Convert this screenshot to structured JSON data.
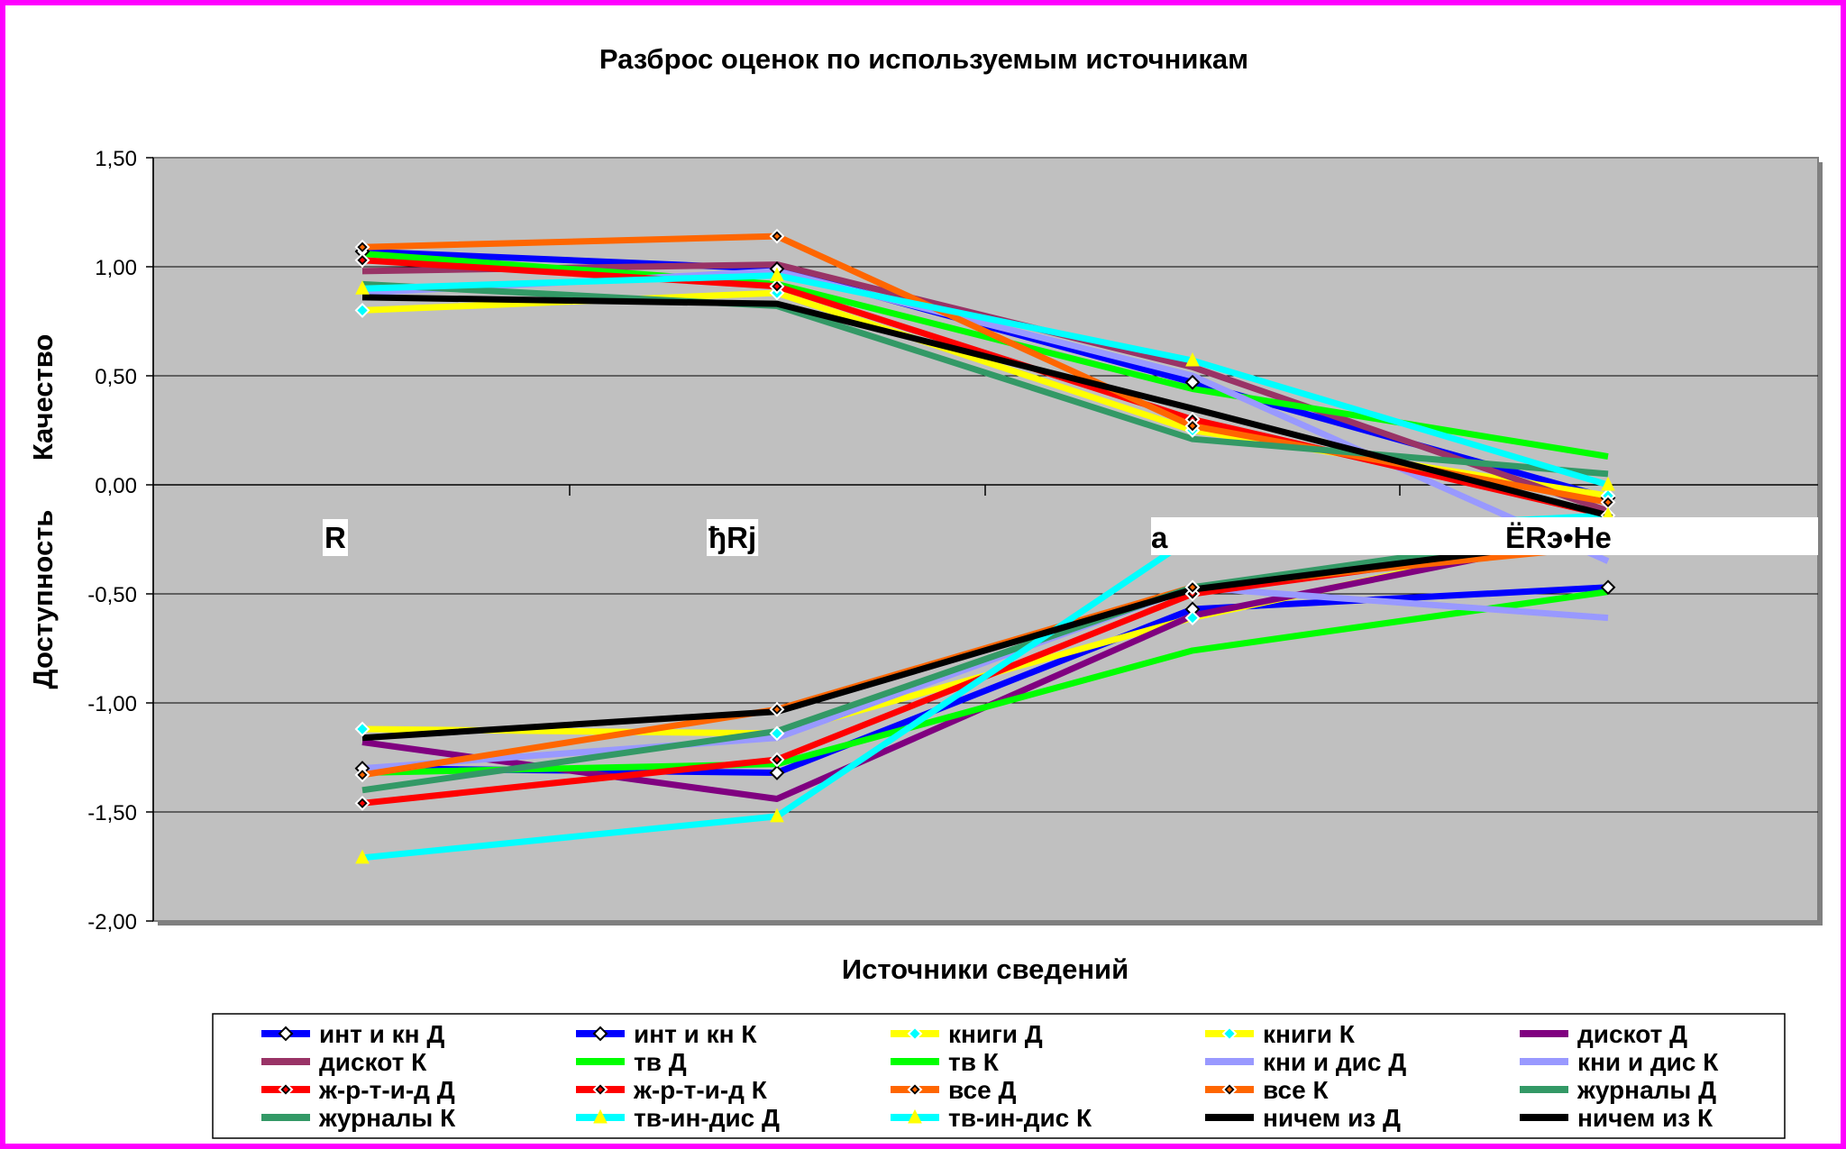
{
  "chart_data": {
    "type": "line",
    "title": "Разброс оценок по используемым источникам",
    "xlabel": "Источники сведений",
    "ylabel_upper": "Качество",
    "ylabel_lower": "Доступность",
    "categories": [
      "R",
      "ђRj",
      "a",
      "ЁRэ•Не"
    ],
    "ylim": [
      -2.0,
      1.5
    ],
    "yticks": [
      "1,50",
      "1,00",
      "0,50",
      "0,00",
      "-0,50",
      "-1,00",
      "-1,50",
      "-2,00"
    ],
    "ytick_values": [
      1.5,
      1.0,
      0.5,
      0.0,
      -0.5,
      -1.0,
      -1.5,
      -2.0
    ],
    "grid": true,
    "plot_background": "#c0c0c0",
    "legend_position": "bottom",
    "series": [
      {
        "name": "инт и кн Д",
        "color": "#0000ff",
        "marker": "diamond-white",
        "values": [
          1.07,
          0.99,
          0.47,
          -0.06
        ]
      },
      {
        "name": "инт и кн К",
        "color": "#0000ff",
        "marker": "diamond-white",
        "values": [
          -1.3,
          -1.32,
          -0.57,
          -0.47
        ]
      },
      {
        "name": "книги Д",
        "color": "#ffff00",
        "marker": "diamond-cyan",
        "values": [
          0.8,
          0.88,
          0.25,
          -0.05
        ]
      },
      {
        "name": "книги К",
        "color": "#ffff00",
        "marker": "diamond-cyan",
        "values": [
          -1.12,
          -1.14,
          -0.61,
          -0.2
        ]
      },
      {
        "name": "дискот Д",
        "color": "#800080",
        "marker": "none",
        "values": [
          -1.18,
          -1.44,
          -0.6,
          -0.22
        ]
      },
      {
        "name": "дискот К",
        "color": "#993366",
        "marker": "none",
        "values": [
          0.98,
          1.01,
          0.54,
          -0.12
        ]
      },
      {
        "name": "тв Д",
        "color": "#00ff00",
        "marker": "none",
        "values": [
          1.06,
          0.92,
          0.44,
          0.13
        ]
      },
      {
        "name": "тв К",
        "color": "#00ff00",
        "marker": "none",
        "values": [
          -1.32,
          -1.28,
          -0.76,
          -0.49
        ]
      },
      {
        "name": "кни и дис Д",
        "color": "#9999ff",
        "marker": "none",
        "values": [
          0.88,
          0.98,
          0.5,
          -0.35
        ]
      },
      {
        "name": "кни и дис К",
        "color": "#9999ff",
        "marker": "none",
        "values": [
          -1.3,
          -1.16,
          -0.47,
          -0.61
        ]
      },
      {
        "name": "ж-р-т-и-д Д",
        "color": "#ff0000",
        "marker": "diamond-black",
        "values": [
          1.03,
          0.91,
          0.3,
          -0.14
        ]
      },
      {
        "name": "ж-р-т-и-д К",
        "color": "#ff0000",
        "marker": "diamond-black",
        "values": [
          -1.46,
          -1.26,
          -0.5,
          -0.24
        ]
      },
      {
        "name": "все Д",
        "color": "#ff6600",
        "marker": "diamond-black",
        "values": [
          1.09,
          1.14,
          0.27,
          -0.08
        ]
      },
      {
        "name": "все К",
        "color": "#ff6600",
        "marker": "diamond-black",
        "values": [
          -1.33,
          -1.03,
          -0.47,
          -0.28
        ]
      },
      {
        "name": "журналы Д",
        "color": "#339966",
        "marker": "none",
        "values": [
          0.92,
          0.82,
          0.21,
          0.05
        ]
      },
      {
        "name": "журналы К",
        "color": "#339966",
        "marker": "none",
        "values": [
          -1.4,
          -1.13,
          -0.47,
          -0.2
        ]
      },
      {
        "name": "тв-ин-дис Д",
        "color": "#00ffff",
        "marker": "triangle-yellow",
        "values": [
          0.9,
          0.96,
          0.57,
          0.0
        ]
      },
      {
        "name": "тв-ин-дис К",
        "color": "#00ffff",
        "marker": "triangle-yellow",
        "values": [
          -1.71,
          -1.52,
          -0.24,
          -0.14
        ]
      },
      {
        "name": "ничем из Д",
        "color": "#000000",
        "marker": "none",
        "values": [
          0.86,
          0.83,
          0.35,
          -0.14
        ]
      },
      {
        "name": "ничем из К",
        "color": "#000000",
        "marker": "none",
        "values": [
          -1.16,
          -1.04,
          -0.48,
          -0.24
        ]
      }
    ]
  }
}
